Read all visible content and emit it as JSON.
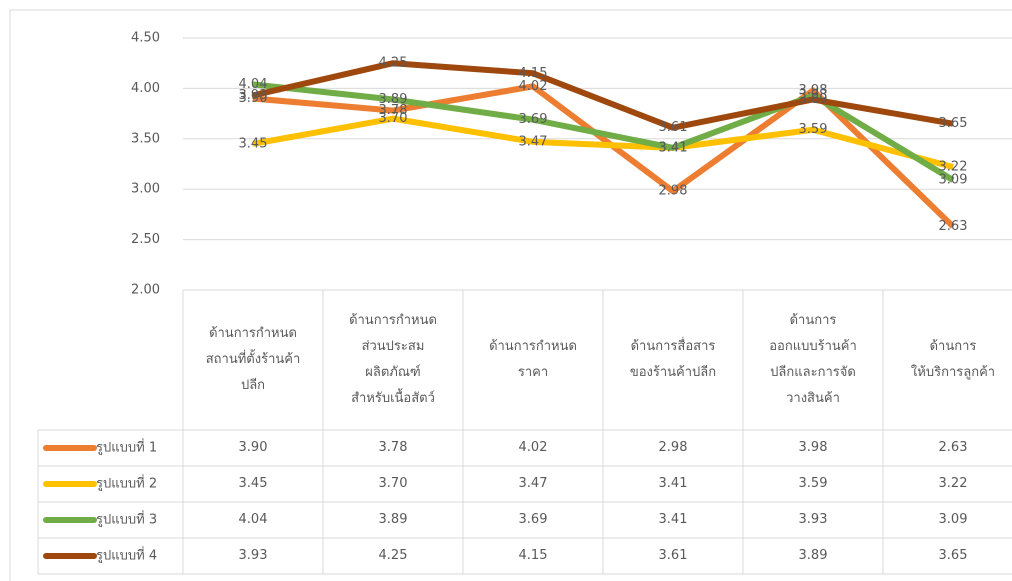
{
  "chart_data": {
    "type": "line",
    "categories": [
      "ด้านการกำหนด\nสถานที่ตั้งร้านค้า\nปลีก",
      "ด้านการกำหนด\nส่วนประสม\nผลิตภัณฑ์\nสำหรับเนื้อสัตว์",
      "ด้านการกำหนด\nราคา",
      "ด้านการสื่อสาร\nของร้านค้าปลีก",
      "ด้านการ\nออกแบบร้านค้า\nปลีกและการจัด\nวางสินค้า",
      "ด้านการ\nให้บริการลูกค้า"
    ],
    "series": [
      {
        "name": "รูปแบบที่ 1",
        "color": "#ed7d31",
        "values": [
          3.9,
          3.78,
          4.02,
          2.98,
          3.98,
          2.63
        ],
        "value_labels": [
          "3.90",
          "3.78",
          "4.02",
          "2.98",
          "3.98",
          "2.63"
        ]
      },
      {
        "name": "รูปแบบที่ 2",
        "color": "#ffc000",
        "values": [
          3.45,
          3.7,
          3.47,
          3.41,
          3.59,
          3.22
        ],
        "value_labels": [
          "3.45",
          "3.70",
          "3.47",
          "3.41",
          "3.59",
          "3.22"
        ]
      },
      {
        "name": "รูปแบบที่ 3",
        "color": "#70ad47",
        "values": [
          4.04,
          3.89,
          3.69,
          3.41,
          3.93,
          3.09
        ],
        "value_labels": [
          "4.04",
          "3.89",
          "3.69",
          "3.41",
          "3.93",
          "3.09"
        ]
      },
      {
        "name": "รูปแบบที่ 4",
        "color": "#9e480e",
        "values": [
          3.93,
          4.25,
          4.15,
          3.61,
          3.89,
          3.65
        ],
        "value_labels": [
          "3.93",
          "4.25",
          "4.15",
          "3.61",
          "3.89",
          "3.65"
        ]
      }
    ],
    "ylim": [
      2,
      4.5
    ],
    "yticks": [
      {
        "value": 2,
        "label": "2.00"
      },
      {
        "value": 2.5,
        "label": "2.50"
      },
      {
        "value": 3,
        "label": "3.00"
      },
      {
        "value": 3.5,
        "label": "3.50"
      },
      {
        "value": 4,
        "label": "4.00"
      },
      {
        "value": 4.5,
        "label": "4.50"
      }
    ],
    "grid": true
  }
}
